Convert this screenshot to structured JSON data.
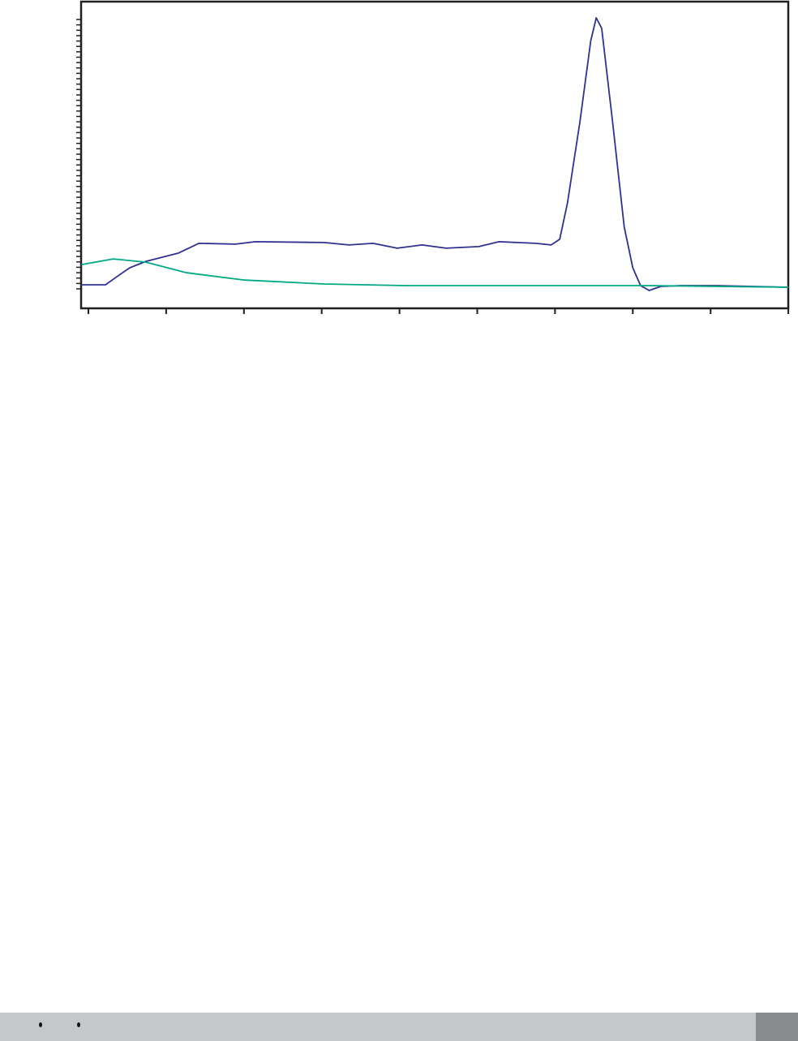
{
  "chart_data": {
    "type": "line",
    "title": "",
    "xlabel": "",
    "ylabel": "",
    "xlim": [
      -0.09,
      9
    ],
    "ylim": [
      -7.2,
      106.6
    ],
    "x_ticks": [
      0,
      1,
      2,
      3,
      4,
      5,
      6,
      7,
      8,
      9
    ],
    "grid": false,
    "legend": "none",
    "series": [
      {
        "color": "#2e3192",
        "points": [
          [
            -0.09,
            1.5
          ],
          [
            0.22,
            1.5
          ],
          [
            0.38,
            4.8
          ],
          [
            0.53,
            7.8
          ],
          [
            0.74,
            10.2
          ],
          [
            1.16,
            13.3
          ],
          [
            1.42,
            16.9
          ],
          [
            1.89,
            16.6
          ],
          [
            2.15,
            17.5
          ],
          [
            3.03,
            17.2
          ],
          [
            3.35,
            16.3
          ],
          [
            3.66,
            16.9
          ],
          [
            3.97,
            15.1
          ],
          [
            4.29,
            16.3
          ],
          [
            4.6,
            15.1
          ],
          [
            5.02,
            15.7
          ],
          [
            5.28,
            17.5
          ],
          [
            5.75,
            16.9
          ],
          [
            5.95,
            16.3
          ],
          [
            6.06,
            18.4
          ],
          [
            6.16,
            31.9
          ],
          [
            6.32,
            62
          ],
          [
            6.46,
            92.2
          ],
          [
            6.53,
            100.6
          ],
          [
            6.6,
            96.7
          ],
          [
            6.74,
            62
          ],
          [
            6.89,
            22.9
          ],
          [
            7.0,
            7.8
          ],
          [
            7.1,
            1.2
          ],
          [
            7.21,
            -0.6
          ],
          [
            7.36,
            0.9
          ],
          [
            7.62,
            1.2
          ],
          [
            8.09,
            1.2
          ],
          [
            9.0,
            0.6
          ]
        ]
      },
      {
        "color": "#00a886",
        "points": [
          [
            -0.09,
            9.0
          ],
          [
            0.32,
            11.1
          ],
          [
            0.74,
            9.9
          ],
          [
            1.26,
            6.0
          ],
          [
            1.99,
            3.3
          ],
          [
            3.03,
            1.8
          ],
          [
            4.08,
            1.2
          ],
          [
            5.12,
            1.2
          ],
          [
            6.16,
            1.2
          ],
          [
            7.21,
            1.2
          ],
          [
            9,
            0.6
          ]
        ]
      }
    ]
  },
  "footer": {
    "bar_color": "#c6c7c9",
    "box_color": "#8a8b8d"
  }
}
